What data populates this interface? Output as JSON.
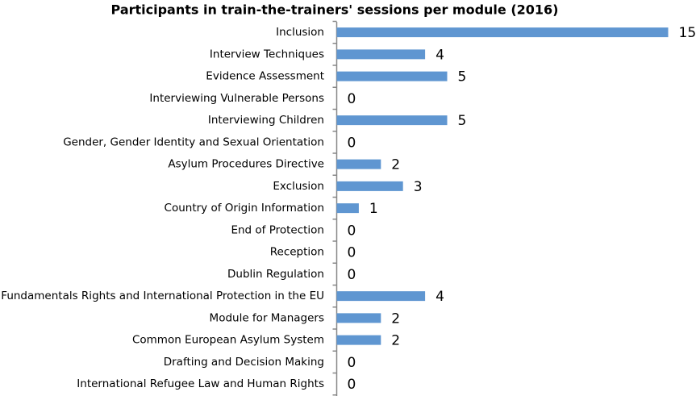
{
  "chart_data": {
    "type": "bar",
    "orientation": "horizontal",
    "title": "Participants in train-the-trainers' sessions per module (2016)",
    "categories": [
      "Inclusion",
      "Interview Techniques",
      "Evidence Assessment",
      "Interviewing Vulnerable Persons",
      "Interviewing Children",
      "Gender, Gender Identity and Sexual Orientation",
      "Asylum Procedures Directive",
      "Exclusion",
      "Country of Origin Information",
      "End of Protection",
      "Reception",
      "Dublin Regulation",
      "Fundamentals Rights and International Protection in the EU",
      "Module for Managers",
      "Common European Asylum System",
      "Drafting and Decision Making",
      "International Refugee Law and Human Rights"
    ],
    "values": [
      15,
      4,
      5,
      0,
      5,
      0,
      2,
      3,
      1,
      0,
      0,
      0,
      4,
      2,
      2,
      0,
      0
    ],
    "color": "#5f96d1"
  }
}
